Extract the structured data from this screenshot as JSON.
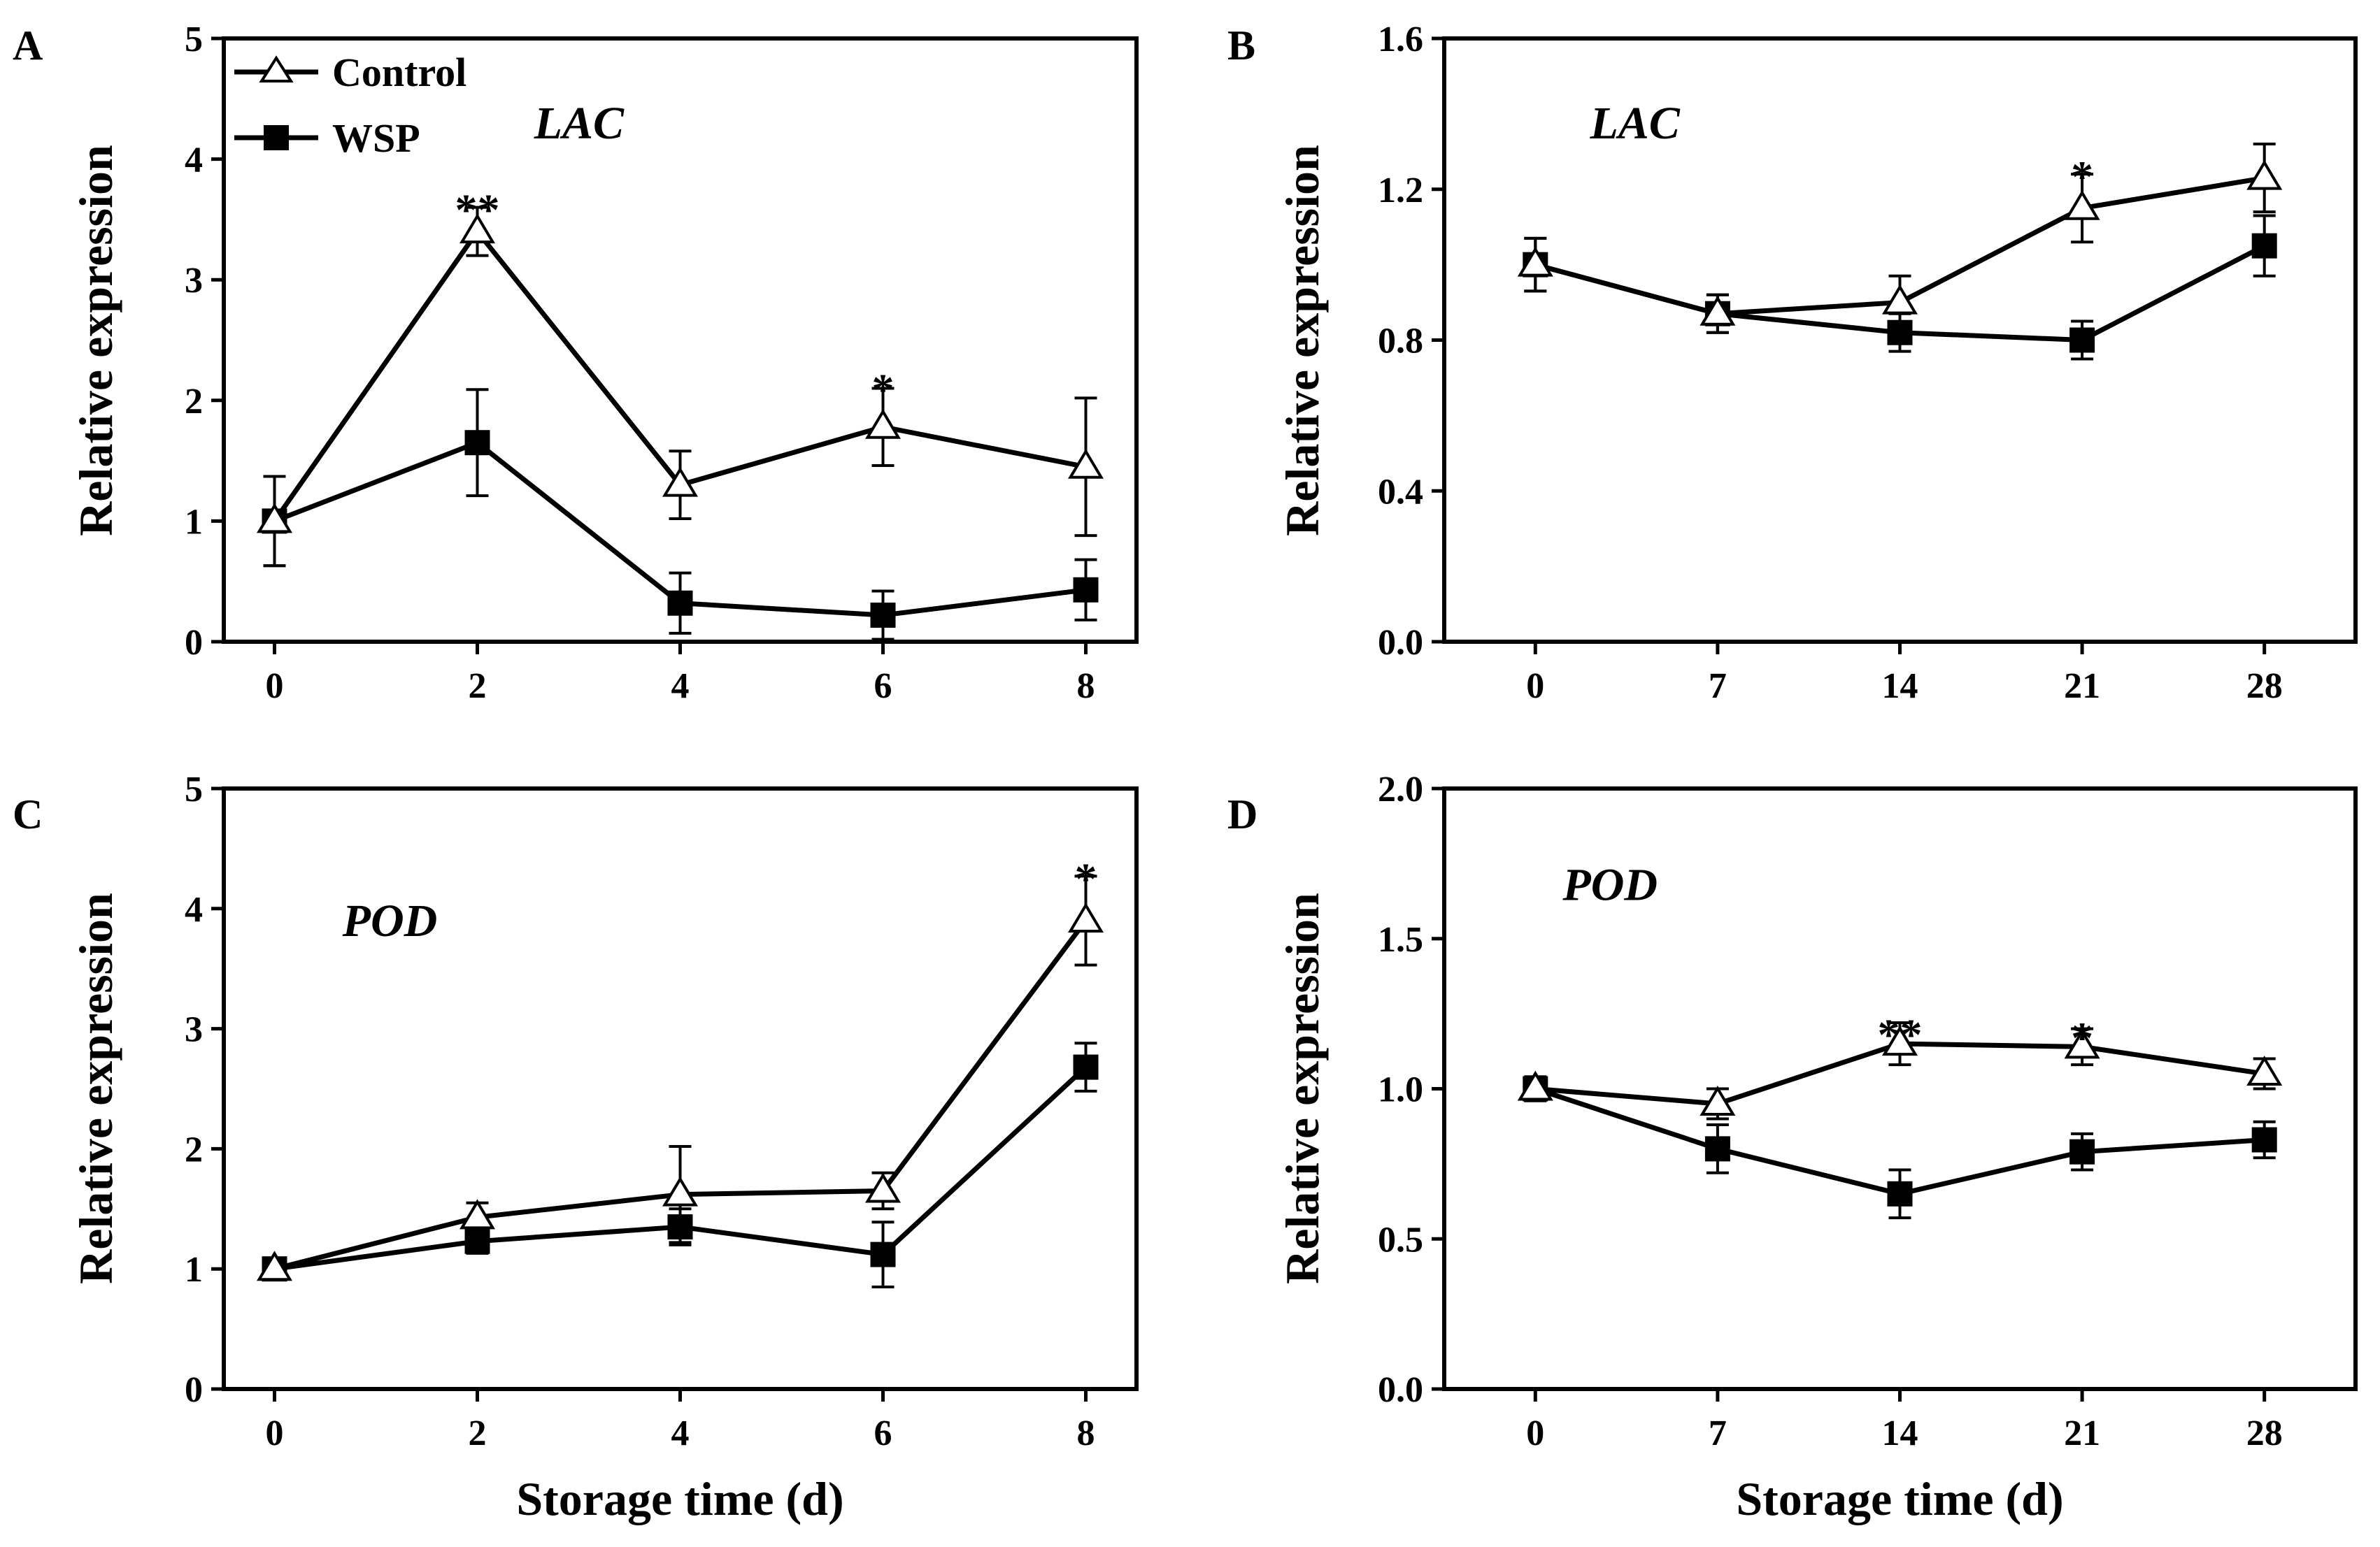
{
  "legend": {
    "control_label": "Control",
    "wsp_label": "WSP"
  },
  "chart_data": [
    {
      "id": "A",
      "type": "line",
      "panel_label": "A",
      "gene_label": "LAC",
      "ylabel": "Relative expression",
      "xlabel": "",
      "x": [
        0,
        2,
        4,
        6,
        8
      ],
      "x_tick_labels": [
        "0",
        "2",
        "4",
        "6",
        "8"
      ],
      "xlim": [
        -0.5,
        8.5
      ],
      "ylim": [
        0,
        5
      ],
      "y_ticks": [
        0,
        1,
        2,
        3,
        4,
        5
      ],
      "y_tick_labels": [
        "0",
        "1",
        "2",
        "3",
        "4",
        "5"
      ],
      "series": [
        {
          "name": "Control",
          "marker": "open-triangle",
          "values": [
            1.0,
            3.4,
            1.3,
            1.78,
            1.45
          ],
          "errors": [
            0.37,
            0.2,
            0.28,
            0.32,
            0.57
          ]
        },
        {
          "name": "WSP",
          "marker": "filled-square",
          "values": [
            1.0,
            1.65,
            0.32,
            0.22,
            0.43
          ],
          "errors": [
            0.37,
            0.44,
            0.25,
            0.2,
            0.25
          ]
        }
      ],
      "annotations": [
        {
          "x": 2,
          "y": 3.63,
          "text": "**"
        },
        {
          "x": 6,
          "y": 2.14,
          "text": "*"
        }
      ]
    },
    {
      "id": "B",
      "type": "line",
      "panel_label": "B",
      "gene_label": "LAC",
      "ylabel": "Relative expression",
      "xlabel": "",
      "x": [
        0,
        7,
        14,
        21,
        28
      ],
      "x_tick_labels": [
        "0",
        "7",
        "14",
        "21",
        "28"
      ],
      "xlim": [
        -3.5,
        31.5
      ],
      "ylim": [
        0,
        1.6
      ],
      "y_ticks": [
        0,
        0.4,
        0.8,
        1.2,
        1.6
      ],
      "y_tick_labels": [
        "0.0",
        "0.4",
        "0.8",
        "1.2",
        "1.6"
      ],
      "series": [
        {
          "name": "Control",
          "marker": "open-triangle",
          "values": [
            1.0,
            0.87,
            0.9,
            1.15,
            1.23
          ],
          "errors": [
            0.07,
            0.05,
            0.07,
            0.09,
            0.09
          ]
        },
        {
          "name": "WSP",
          "marker": "filled-square",
          "values": [
            1.0,
            0.87,
            0.82,
            0.8,
            1.05
          ],
          "errors": [
            0.07,
            0.05,
            0.05,
            0.05,
            0.08
          ]
        }
      ],
      "annotations": [
        {
          "x": 21,
          "y": 1.25,
          "text": "*"
        }
      ]
    },
    {
      "id": "C",
      "type": "line",
      "panel_label": "C",
      "gene_label": "POD",
      "ylabel": "Relative expression",
      "xlabel": "Storage time (d)",
      "x": [
        0,
        2,
        4,
        6,
        8
      ],
      "x_tick_labels": [
        "0",
        "2",
        "4",
        "6",
        "8"
      ],
      "xlim": [
        -0.5,
        8.5
      ],
      "ylim": [
        0,
        5
      ],
      "y_ticks": [
        0,
        1,
        2,
        3,
        4,
        5
      ],
      "y_tick_labels": [
        "0",
        "1",
        "2",
        "3",
        "4",
        "5"
      ],
      "series": [
        {
          "name": "Control",
          "marker": "open-triangle",
          "values": [
            1.0,
            1.43,
            1.62,
            1.65,
            3.9
          ],
          "errors": [
            0.08,
            0.12,
            0.4,
            0.15,
            0.37
          ]
        },
        {
          "name": "WSP",
          "marker": "filled-square",
          "values": [
            1.0,
            1.23,
            1.35,
            1.12,
            2.68
          ],
          "errors": [
            0.08,
            0.1,
            0.15,
            0.27,
            0.2
          ]
        }
      ],
      "annotations": [
        {
          "x": 8,
          "y": 4.3,
          "text": "*"
        }
      ]
    },
    {
      "id": "D",
      "type": "line",
      "panel_label": "D",
      "gene_label": "POD",
      "ylabel": "Relative expression",
      "xlabel": "Storage time (d)",
      "x": [
        0,
        7,
        14,
        21,
        28
      ],
      "x_tick_labels": [
        "0",
        "7",
        "14",
        "21",
        "28"
      ],
      "xlim": [
        -3.5,
        31.5
      ],
      "ylim": [
        0,
        2.0
      ],
      "y_ticks": [
        0,
        0.5,
        1.0,
        1.5,
        2.0
      ],
      "y_tick_labels": [
        "0.0",
        "0.5",
        "1.0",
        "1.5",
        "2.0"
      ],
      "series": [
        {
          "name": "Control",
          "marker": "open-triangle",
          "values": [
            1.0,
            0.95,
            1.15,
            1.14,
            1.05
          ],
          "errors": [
            0.04,
            0.05,
            0.07,
            0.06,
            0.05
          ]
        },
        {
          "name": "WSP",
          "marker": "filled-square",
          "values": [
            1.0,
            0.8,
            0.65,
            0.79,
            0.83
          ],
          "errors": [
            0.04,
            0.08,
            0.08,
            0.06,
            0.06
          ]
        }
      ],
      "annotations": [
        {
          "x": 14,
          "y": 1.2,
          "text": "**"
        },
        {
          "x": 21,
          "y": 1.19,
          "text": "*"
        }
      ]
    }
  ]
}
